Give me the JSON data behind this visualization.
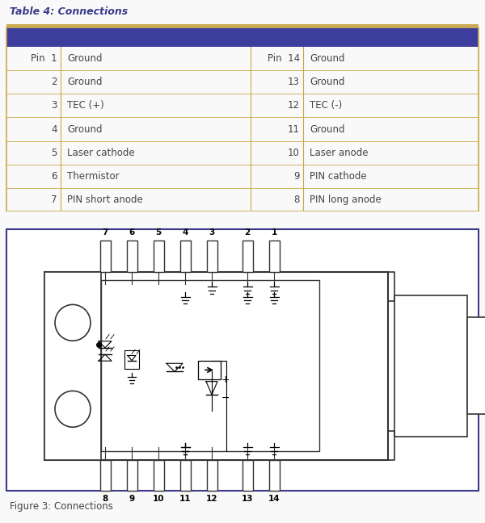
{
  "title": "Table 4: Connections",
  "figure_caption": "Figure 3: Connections",
  "header_color": "#3d3d9e",
  "table_border_color": "#c8a84b",
  "text_color": "#3a3a8c",
  "body_text_color": "#444444",
  "diagram_border_color": "#3a3a8c",
  "background_color": "#f8f8f8",
  "rows": [
    {
      "pin_left": "Pin  1",
      "desc_left": "Ground",
      "pin_right": "Pin  14",
      "desc_right": "Ground"
    },
    {
      "pin_left": "2",
      "desc_left": "Ground",
      "pin_right": "13",
      "desc_right": "Ground"
    },
    {
      "pin_left": "3",
      "desc_left": "TEC (+)",
      "pin_right": "12",
      "desc_right": "TEC (-)"
    },
    {
      "pin_left": "4",
      "desc_left": "Ground",
      "pin_right": "11",
      "desc_right": "Ground"
    },
    {
      "pin_left": "5",
      "desc_left": "Laser cathode",
      "pin_right": "10",
      "desc_right": "Laser anode"
    },
    {
      "pin_left": "6",
      "desc_left": "Thermistor",
      "pin_right": "9",
      "desc_right": "PIN cathode"
    },
    {
      "pin_left": "7",
      "desc_left": "PIN short anode",
      "pin_right": "8",
      "desc_right": "PIN long anode"
    }
  ],
  "figsize": [
    6.0,
    6.48
  ],
  "dpi": 100
}
